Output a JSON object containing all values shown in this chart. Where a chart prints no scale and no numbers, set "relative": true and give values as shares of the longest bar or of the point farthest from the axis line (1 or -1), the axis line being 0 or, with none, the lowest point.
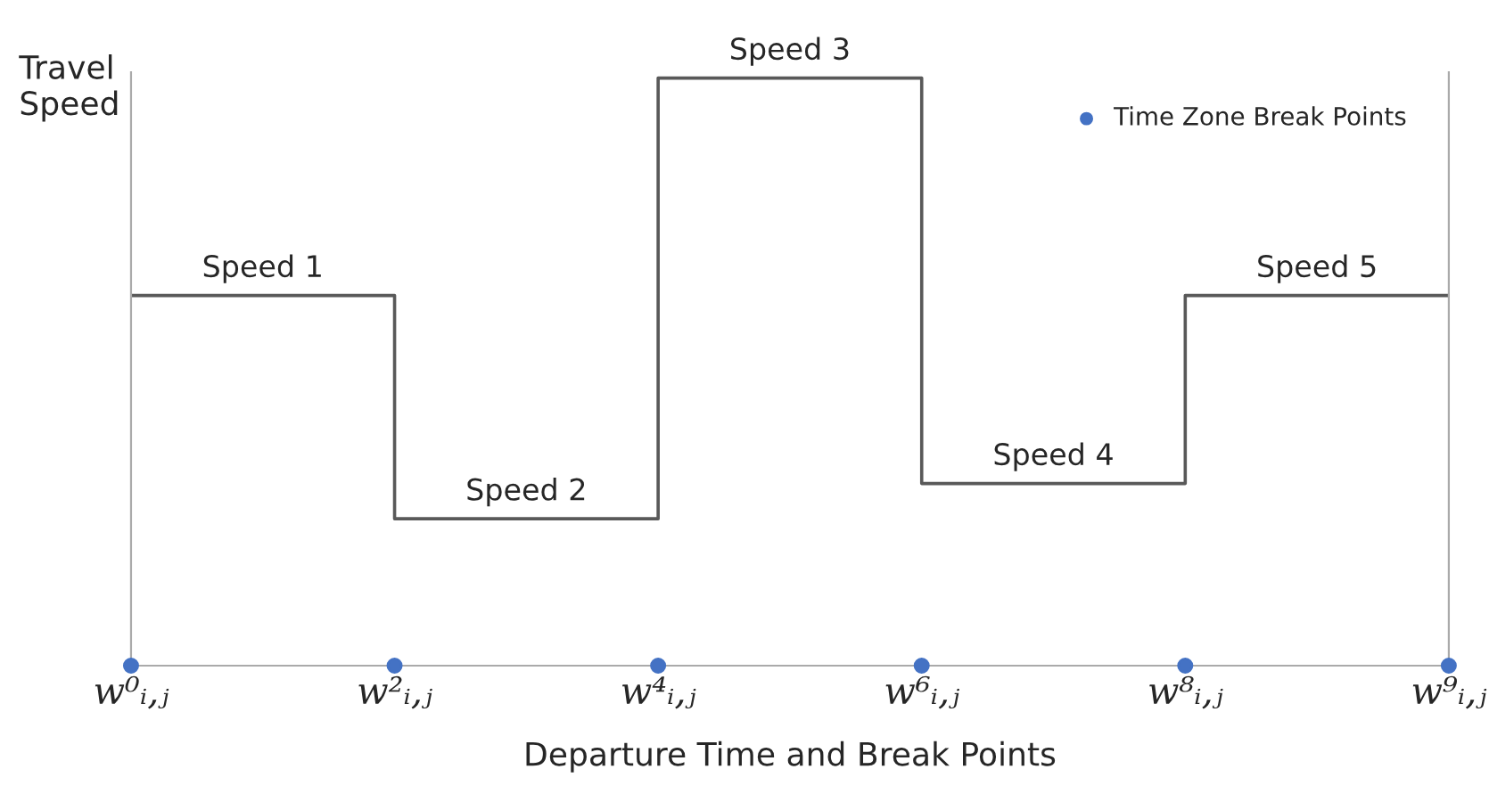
{
  "chart_data": {
    "type": "step",
    "relative": true,
    "ylabel": "Travel\nSpeed",
    "xlabel": "Departure Time and Break Points",
    "categories": [
      "w⁰ᵢ,ⱼ",
      "w²ᵢ,ⱼ",
      "w⁴ᵢ,ⱼ",
      "w⁶ᵢ,ⱼ",
      "w⁸ᵢ,ⱼ",
      "w⁹ᵢ,ⱼ"
    ],
    "series": [
      {
        "color": "#595959",
        "values": [
          0.63,
          0.25,
          1,
          0.31,
          0.63,
          0.63
        ]
      },
      {
        "type": "scatter",
        "name": "Time Zone Break Points",
        "color": "#4472c4",
        "marker": "circle",
        "values": [
          0,
          0,
          0,
          0,
          0,
          0
        ]
      }
    ],
    "annotations": [
      {
        "text": "Speed 1",
        "x": "w⁰ᵢ,ⱼ",
        "y": 0.63
      },
      {
        "text": "Speed 2",
        "x": "w²ᵢ,ⱼ",
        "y": 0.25
      },
      {
        "text": "Speed 3",
        "x": "w⁴ᵢ,ⱼ",
        "y": 1
      },
      {
        "text": "Speed 4",
        "x": "w⁶ᵢ,ⱼ",
        "y": 0.31
      },
      {
        "text": "Speed 5",
        "x": "w⁸ᵢ,ⱼ",
        "y": 0.63
      }
    ],
    "legend": "top right",
    "grid": false
  }
}
